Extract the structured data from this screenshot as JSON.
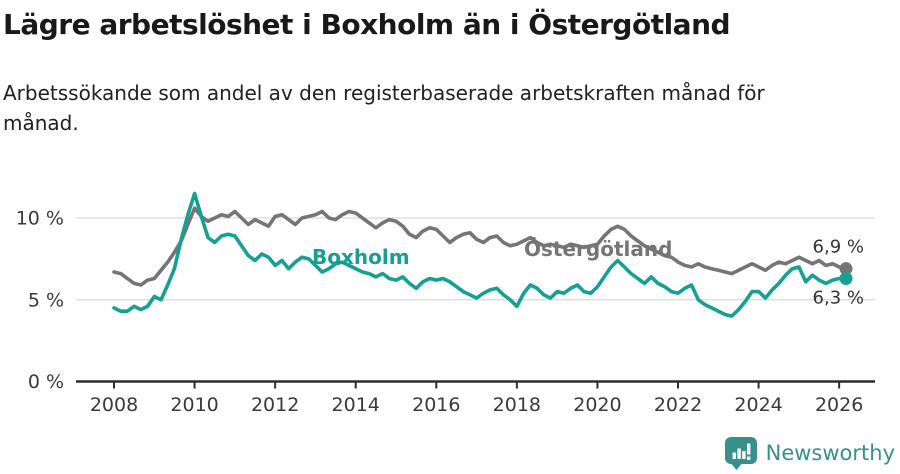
{
  "header": {
    "title": "Lägre arbetslöshet i Boxholm än i Östergötland",
    "subtitle": "Arbetssökande som andel av den registerbaserade arbetskraften månad för månad."
  },
  "chart_data": {
    "type": "line",
    "title": "Lägre arbetslöshet i Boxholm än i Östergötland",
    "subtitle": "Arbetssökande som andel av den registerbaserade arbetskraften månad för månad.",
    "unit": "%",
    "x_start": 2008.0,
    "x_end": 2026.17,
    "points_per_year": 6,
    "ylim": [
      0,
      12
    ],
    "grid": "horizontal",
    "yticks": [
      {
        "value": 0,
        "label": "0 %"
      },
      {
        "value": 5,
        "label": "5 %"
      },
      {
        "value": 10,
        "label": "10 %"
      }
    ],
    "xticks": [
      {
        "value": 2008,
        "label": "2008"
      },
      {
        "value": 2010,
        "label": "2010"
      },
      {
        "value": 2012,
        "label": "2012"
      },
      {
        "value": 2014,
        "label": "2014"
      },
      {
        "value": 2016,
        "label": "2016"
      },
      {
        "value": 2018,
        "label": "2018"
      },
      {
        "value": 2020,
        "label": "2020"
      },
      {
        "value": 2022,
        "label": "2022"
      },
      {
        "value": 2024,
        "label": "2024"
      },
      {
        "value": 2026,
        "label": "2026"
      }
    ],
    "series": [
      {
        "name": "Boxholm",
        "color": "#14a193",
        "end_label": "6,3 %",
        "end_value": 6.3,
        "values": [
          4.5,
          4.3,
          4.3,
          4.6,
          4.4,
          4.6,
          5.2,
          5.0,
          5.9,
          6.9,
          8.7,
          10.2,
          11.5,
          10.1,
          8.8,
          8.5,
          8.9,
          9.0,
          8.9,
          8.3,
          7.7,
          7.4,
          7.8,
          7.6,
          7.1,
          7.4,
          6.9,
          7.3,
          7.6,
          7.5,
          7.1,
          6.7,
          6.9,
          7.2,
          7.3,
          7.1,
          6.9,
          6.7,
          6.6,
          6.4,
          6.6,
          6.3,
          6.2,
          6.4,
          6.0,
          5.7,
          6.1,
          6.3,
          6.2,
          6.3,
          6.1,
          5.8,
          5.5,
          5.3,
          5.1,
          5.4,
          5.6,
          5.7,
          5.3,
          5.0,
          4.6,
          5.4,
          5.9,
          5.7,
          5.3,
          5.1,
          5.5,
          5.4,
          5.7,
          5.9,
          5.5,
          5.4,
          5.8,
          6.4,
          7.0,
          7.4,
          7.0,
          6.6,
          6.3,
          6.0,
          6.4,
          6.0,
          5.8,
          5.5,
          5.4,
          5.7,
          5.9,
          5.0,
          4.7,
          4.5,
          4.3,
          4.1,
          4.0,
          4.4,
          4.9,
          5.5,
          5.5,
          5.1,
          5.6,
          6.0,
          6.5,
          6.9,
          7.0,
          6.1,
          6.5,
          6.2,
          6.0,
          6.2,
          6.3,
          6.3
        ]
      },
      {
        "name": "Östergötland",
        "color": "#757575",
        "end_label": "6,9 %",
        "end_value": 6.9,
        "values": [
          6.7,
          6.6,
          6.3,
          6.0,
          5.9,
          6.2,
          6.3,
          6.8,
          7.3,
          7.9,
          8.6,
          9.6,
          10.6,
          10.1,
          9.8,
          10.0,
          10.2,
          10.1,
          10.4,
          10.0,
          9.6,
          9.9,
          9.7,
          9.5,
          10.1,
          10.2,
          9.9,
          9.6,
          10.0,
          10.1,
          10.2,
          10.4,
          10.0,
          9.9,
          10.2,
          10.4,
          10.3,
          10.0,
          9.7,
          9.4,
          9.7,
          9.9,
          9.8,
          9.5,
          9.0,
          8.8,
          9.2,
          9.4,
          9.3,
          8.9,
          8.5,
          8.8,
          9.0,
          9.1,
          8.7,
          8.5,
          8.8,
          8.9,
          8.5,
          8.3,
          8.4,
          8.6,
          8.8,
          8.5,
          8.3,
          8.4,
          8.3,
          8.2,
          8.4,
          8.3,
          8.2,
          8.3,
          8.4,
          8.9,
          9.3,
          9.5,
          9.3,
          8.9,
          8.6,
          8.3,
          8.1,
          7.9,
          7.7,
          7.6,
          7.3,
          7.1,
          7.0,
          7.2,
          7.0,
          6.9,
          6.8,
          6.7,
          6.6,
          6.8,
          7.0,
          7.2,
          7.0,
          6.8,
          7.1,
          7.3,
          7.2,
          7.4,
          7.6,
          7.4,
          7.2,
          7.4,
          7.1,
          7.2,
          7.0,
          6.9
        ]
      }
    ]
  },
  "footer": {
    "brand": "Newsworthy",
    "brand_color": "#38908b",
    "logo_icon": "bar-chart-speech-bubble"
  }
}
